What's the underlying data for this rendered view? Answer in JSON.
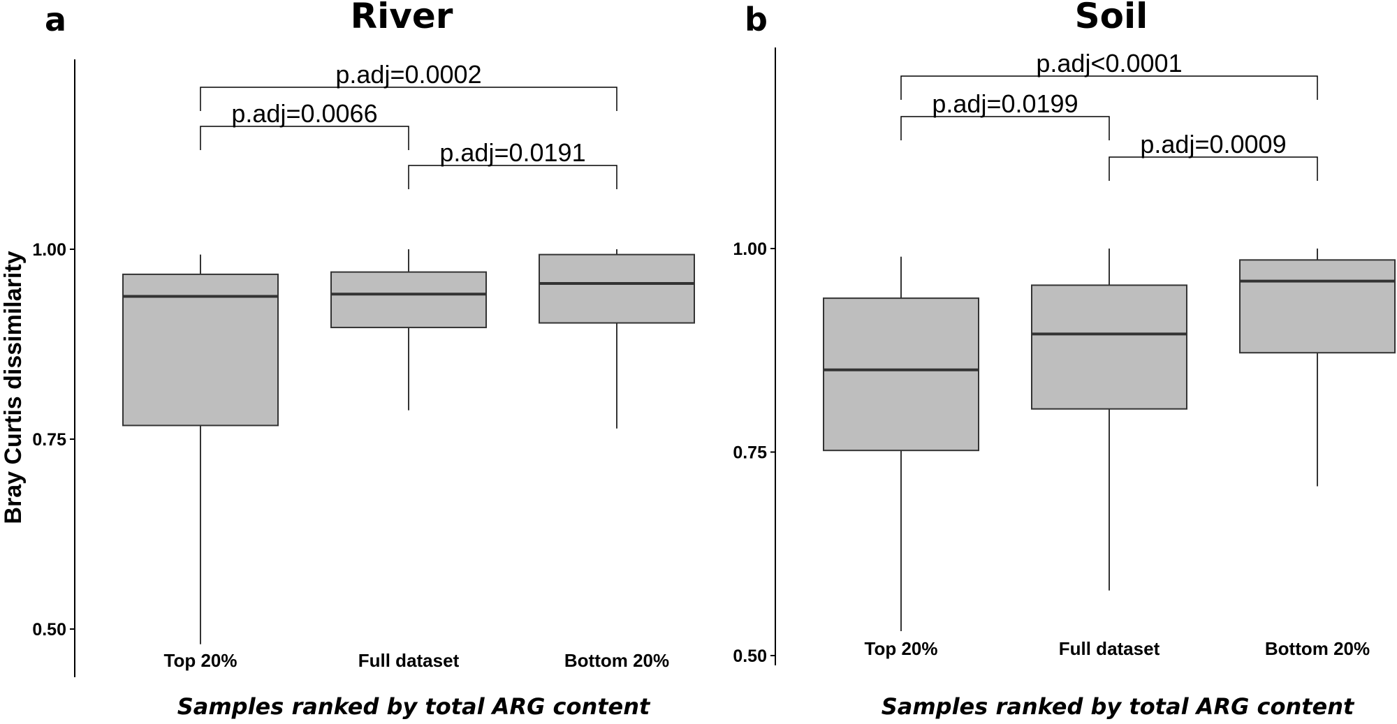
{
  "chart_data": [
    {
      "type": "box",
      "panel": "a",
      "title": "River",
      "ylabel": "Bray Curtis dissimilarity",
      "xlabel": "Samples ranked by total ARG content",
      "ylim": [
        0.45,
        1.26
      ],
      "yticks": [
        0.5,
        0.75,
        1.0
      ],
      "ytick_labels": [
        "0.50",
        "0.75",
        "1.00"
      ],
      "categories": [
        "Top 20%",
        "Full dataset",
        "Bottom 20%"
      ],
      "boxes": [
        {
          "min": 0.48,
          "q1": 0.768,
          "median": 0.938,
          "q3": 0.967,
          "max": 0.993
        },
        {
          "min": 0.788,
          "q1": 0.897,
          "median": 0.941,
          "q3": 0.97,
          "max": 1.0
        },
        {
          "min": 0.764,
          "q1": 0.903,
          "median": 0.955,
          "q3": 0.993,
          "max": 1.0
        }
      ],
      "comparisons": [
        {
          "from": 0,
          "to": 2,
          "label": "p.adj=0.0002",
          "y": 1.202,
          "level": 2
        },
        {
          "from": 0,
          "to": 1,
          "label": "p.adj=0.0066",
          "y": 1.151,
          "level": 1
        },
        {
          "from": 1,
          "to": 2,
          "label": "p.adj=0.0191",
          "y": 1.101,
          "level": 0
        }
      ]
    },
    {
      "type": "box",
      "panel": "b",
      "title": "Soil",
      "ylabel": "",
      "xlabel": "Samples ranked by total ARG content",
      "ylim": [
        0.49,
        1.25
      ],
      "yticks": [
        0.5,
        0.75,
        1.0
      ],
      "ytick_labels": [
        "0.50",
        "0.75",
        "1.00"
      ],
      "categories": [
        "Top 20%",
        "Full dataset",
        "Bottom 20%"
      ],
      "boxes": [
        {
          "min": 0.53,
          "q1": 0.752,
          "median": 0.851,
          "q3": 0.939,
          "max": 0.99
        },
        {
          "min": 0.58,
          "q1": 0.803,
          "median": 0.895,
          "q3": 0.955,
          "max": 1.0
        },
        {
          "min": 0.708,
          "q1": 0.872,
          "median": 0.96,
          "q3": 0.986,
          "max": 1.0
        }
      ],
      "comparisons": [
        {
          "from": 0,
          "to": 2,
          "label": "p.adj<0.0001",
          "y": 1.2,
          "level": 2
        },
        {
          "from": 0,
          "to": 1,
          "label": "p.adj=0.0199",
          "y": 1.15,
          "level": 1
        },
        {
          "from": 1,
          "to": 2,
          "label": "p.adj=0.0009",
          "y": 1.1,
          "level": 0
        }
      ]
    }
  ]
}
